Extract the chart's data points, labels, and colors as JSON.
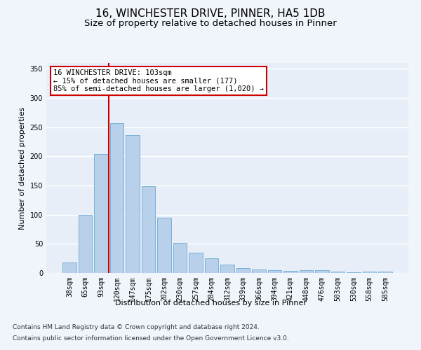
{
  "title_line1": "16, WINCHESTER DRIVE, PINNER, HA5 1DB",
  "title_line2": "Size of property relative to detached houses in Pinner",
  "xlabel": "Distribution of detached houses by size in Pinner",
  "ylabel": "Number of detached properties",
  "categories": [
    "38sqm",
    "65sqm",
    "93sqm",
    "120sqm",
    "147sqm",
    "175sqm",
    "202sqm",
    "230sqm",
    "257sqm",
    "284sqm",
    "312sqm",
    "339sqm",
    "366sqm",
    "394sqm",
    "421sqm",
    "448sqm",
    "476sqm",
    "503sqm",
    "530sqm",
    "558sqm",
    "585sqm"
  ],
  "values": [
    18,
    100,
    204,
    257,
    236,
    149,
    95,
    52,
    35,
    25,
    14,
    8,
    6,
    5,
    4,
    5,
    5,
    2,
    1,
    3,
    3
  ],
  "bar_color": "#b8d0ea",
  "bar_edge_color": "#6aaad4",
  "vline_x_index": 2,
  "vline_color": "#cc0000",
  "ylim": [
    0,
    360
  ],
  "yticks": [
    0,
    50,
    100,
    150,
    200,
    250,
    300,
    350
  ],
  "annotation_text": "16 WINCHESTER DRIVE: 103sqm\n← 15% of detached houses are smaller (177)\n85% of semi-detached houses are larger (1,020) →",
  "annotation_box_color": "#ffffff",
  "annotation_box_edge": "#cc0000",
  "footer_line1": "Contains HM Land Registry data © Crown copyright and database right 2024.",
  "footer_line2": "Contains public sector information licensed under the Open Government Licence v3.0.",
  "background_color": "#e8eef8",
  "grid_color": "#ffffff",
  "title_fontsize": 11,
  "subtitle_fontsize": 9.5,
  "axis_label_fontsize": 8,
  "tick_fontsize": 7,
  "annotation_fontsize": 7.5,
  "footer_fontsize": 6.5
}
